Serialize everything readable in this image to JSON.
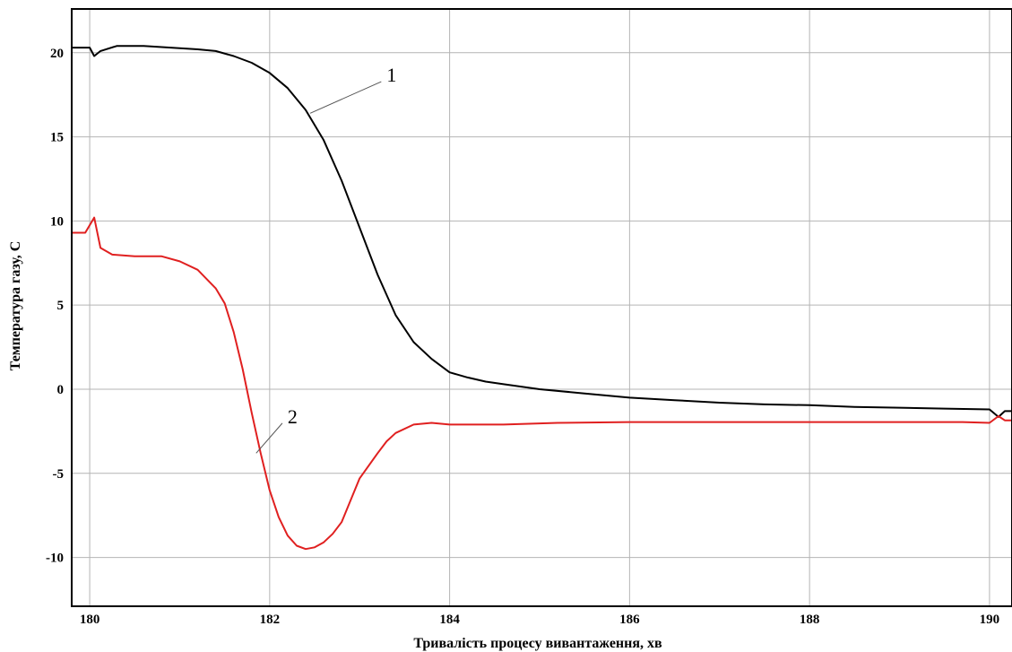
{
  "chart_data": {
    "type": "line",
    "xlabel": "Тривалість процесу вивантаження, хв",
    "ylabel": "Температура газу, С",
    "xlim": [
      179.8,
      190.25
    ],
    "ylim": [
      -12.9,
      22.6
    ],
    "x_ticks": [
      180,
      182,
      184,
      186,
      188,
      190
    ],
    "x_tick_labels": [
      "180",
      "182",
      "184",
      "186",
      "188",
      "190"
    ],
    "y_ticks": [
      20,
      15,
      10,
      5,
      0,
      -5,
      -10
    ],
    "y_tick_labels": [
      "20",
      "15",
      "10",
      "5",
      "0",
      "-5",
      "-10"
    ],
    "grid": true,
    "series": [
      {
        "name": "1",
        "color": "#000000",
        "points": [
          [
            179.8,
            20.3
          ],
          [
            180.0,
            20.3
          ],
          [
            180.05,
            19.8
          ],
          [
            180.12,
            20.1
          ],
          [
            180.3,
            20.4
          ],
          [
            180.6,
            20.4
          ],
          [
            180.9,
            20.3
          ],
          [
            181.2,
            20.2
          ],
          [
            181.4,
            20.1
          ],
          [
            181.6,
            19.8
          ],
          [
            181.8,
            19.4
          ],
          [
            182.0,
            18.8
          ],
          [
            182.2,
            17.9
          ],
          [
            182.4,
            16.6
          ],
          [
            182.6,
            14.8
          ],
          [
            182.8,
            12.4
          ],
          [
            183.0,
            9.6
          ],
          [
            183.2,
            6.8
          ],
          [
            183.4,
            4.4
          ],
          [
            183.6,
            2.8
          ],
          [
            183.8,
            1.8
          ],
          [
            184.0,
            1.0
          ],
          [
            184.2,
            0.7
          ],
          [
            184.4,
            0.45
          ],
          [
            184.6,
            0.3
          ],
          [
            185.0,
            0.0
          ],
          [
            185.5,
            -0.25
          ],
          [
            186.0,
            -0.5
          ],
          [
            186.5,
            -0.65
          ],
          [
            187.0,
            -0.8
          ],
          [
            187.5,
            -0.9
          ],
          [
            188.0,
            -0.95
          ],
          [
            188.5,
            -1.05
          ],
          [
            189.0,
            -1.1
          ],
          [
            189.5,
            -1.15
          ],
          [
            190.0,
            -1.2
          ],
          [
            190.1,
            -1.65
          ],
          [
            190.17,
            -1.3
          ],
          [
            190.25,
            -1.3
          ]
        ]
      },
      {
        "name": "2",
        "color": "#e02020",
        "points": [
          [
            179.8,
            9.3
          ],
          [
            179.95,
            9.3
          ],
          [
            180.05,
            10.2
          ],
          [
            180.12,
            8.4
          ],
          [
            180.25,
            8.0
          ],
          [
            180.5,
            7.9
          ],
          [
            180.8,
            7.9
          ],
          [
            181.0,
            7.6
          ],
          [
            181.2,
            7.1
          ],
          [
            181.4,
            6.0
          ],
          [
            181.5,
            5.1
          ],
          [
            181.6,
            3.4
          ],
          [
            181.7,
            1.2
          ],
          [
            181.8,
            -1.4
          ],
          [
            181.9,
            -3.8
          ],
          [
            182.0,
            -6.0
          ],
          [
            182.1,
            -7.6
          ],
          [
            182.2,
            -8.7
          ],
          [
            182.3,
            -9.3
          ],
          [
            182.4,
            -9.5
          ],
          [
            182.5,
            -9.4
          ],
          [
            182.6,
            -9.1
          ],
          [
            182.7,
            -8.6
          ],
          [
            182.8,
            -7.9
          ],
          [
            183.0,
            -5.3
          ],
          [
            183.2,
            -3.8
          ],
          [
            183.3,
            -3.1
          ],
          [
            183.4,
            -2.6
          ],
          [
            183.6,
            -2.1
          ],
          [
            183.8,
            -2.0
          ],
          [
            184.0,
            -2.1
          ],
          [
            184.6,
            -2.1
          ],
          [
            185.2,
            -2.0
          ],
          [
            186.0,
            -1.95
          ],
          [
            188.0,
            -1.95
          ],
          [
            189.7,
            -1.95
          ],
          [
            190.0,
            -2.0
          ],
          [
            190.1,
            -1.6
          ],
          [
            190.17,
            -1.85
          ],
          [
            190.25,
            -1.85
          ]
        ]
      }
    ],
    "annotations": [
      {
        "text": "1",
        "series": "1",
        "point": [
          182.45,
          16.4
        ],
        "label_point": [
          183.3,
          18.6
        ]
      },
      {
        "text": "2",
        "series": "2",
        "point": [
          181.85,
          -3.8
        ],
        "label_point": [
          182.2,
          -1.7
        ]
      }
    ]
  }
}
